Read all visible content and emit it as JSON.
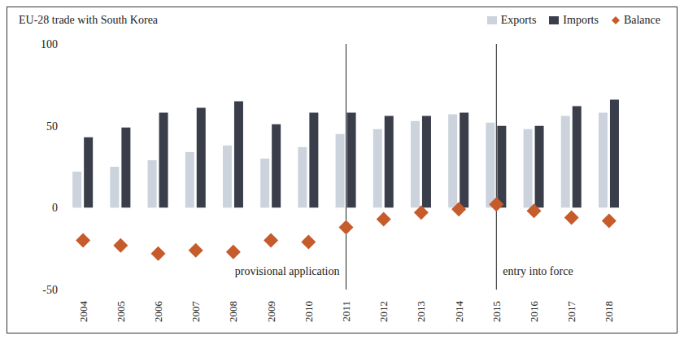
{
  "chart_data": {
    "type": "bar",
    "title": "EU-28 trade with South Korea",
    "categories": [
      "2004",
      "2005",
      "2006",
      "2007",
      "2008",
      "2009",
      "2010",
      "2011",
      "2012",
      "2013",
      "2014",
      "2015",
      "2016",
      "2017",
      "2018"
    ],
    "series": [
      {
        "name": "Exports",
        "type": "bar",
        "color": "#ccd3dd",
        "values": [
          22,
          25,
          29,
          34,
          38,
          30,
          37,
          45,
          48,
          53,
          57,
          52,
          48,
          56,
          58
        ]
      },
      {
        "name": "Imports",
        "type": "bar",
        "color": "#393e4a",
        "values": [
          43,
          49,
          58,
          61,
          65,
          51,
          58,
          58,
          56,
          56,
          58,
          50,
          50,
          62,
          66
        ]
      },
      {
        "name": "Balance",
        "type": "scatter",
        "marker": "diamond",
        "color": "#c65b2c",
        "values": [
          -20,
          -23,
          -28,
          -26,
          -27,
          -20,
          -21,
          -12,
          -7,
          -3,
          -1,
          2,
          -2,
          -6,
          -8
        ]
      }
    ],
    "ylim": [
      -50,
      100
    ],
    "yticks": [
      -50,
      0,
      50,
      100
    ],
    "grid": false,
    "legend": "top-right",
    "annotations": [
      {
        "x": "2011",
        "label": "provisional application"
      },
      {
        "x": "2015",
        "label": "entry into force"
      }
    ]
  }
}
